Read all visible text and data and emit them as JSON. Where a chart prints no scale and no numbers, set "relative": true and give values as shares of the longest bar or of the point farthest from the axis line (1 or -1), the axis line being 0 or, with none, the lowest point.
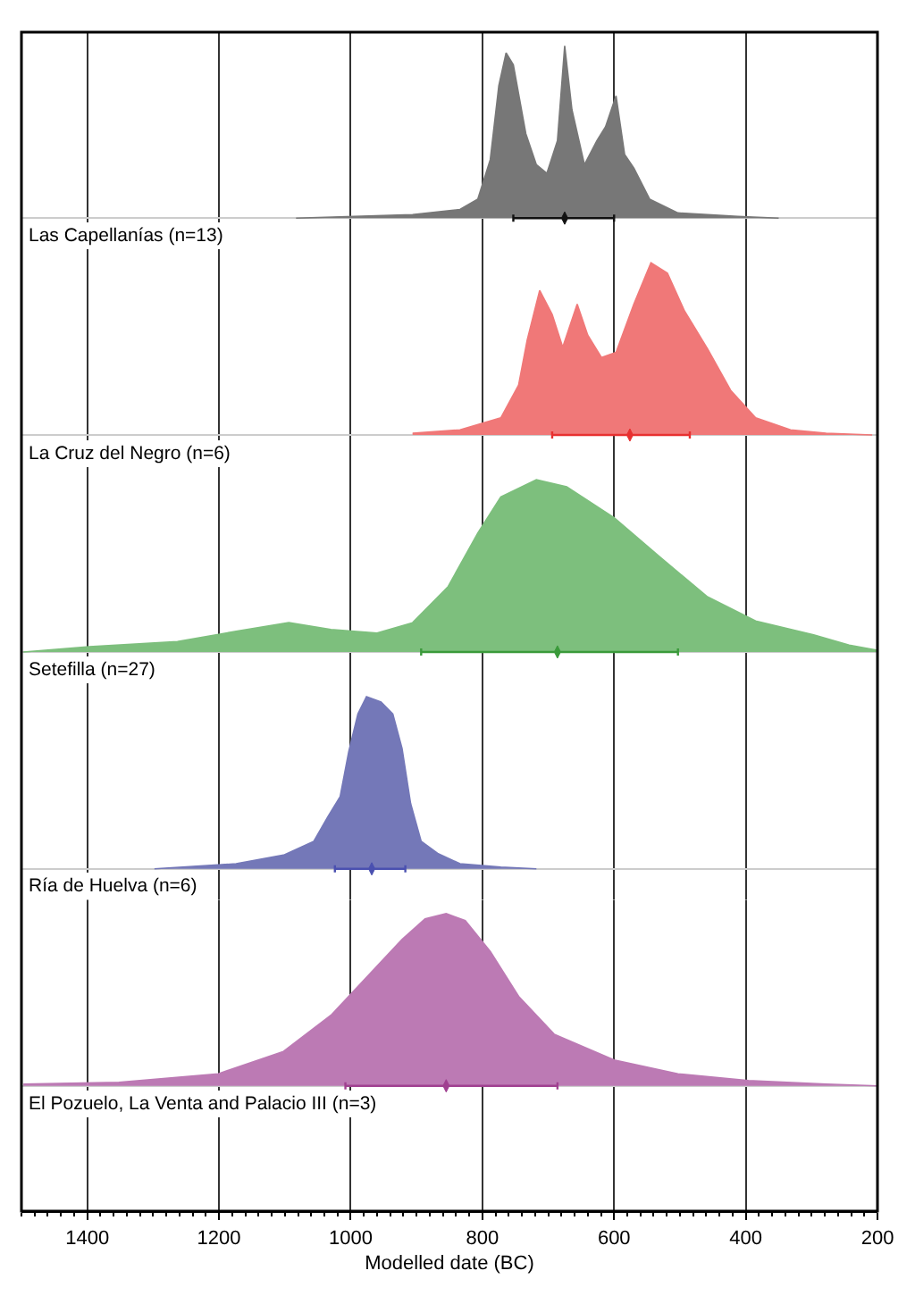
{
  "chart_data": [
    {
      "type": "area",
      "relative": true,
      "xlim": [
        1500,
        200
      ],
      "xticks": [
        1400,
        1200,
        1000,
        800,
        600,
        400,
        200
      ],
      "grid": "x",
      "tick_labels": false,
      "series": [
        {
          "name": "Las Capellanías (n=13)",
          "color": "#777777",
          "x": [
            1083,
            906,
            834,
            807,
            788,
            775,
            764,
            753,
            734,
            718,
            702,
            686,
            675,
            664,
            645,
            626,
            613,
            597,
            584,
            570,
            546,
            503,
            412,
            350
          ],
          "values": [
            0,
            0.02,
            0.05,
            0.11,
            0.34,
            0.77,
            0.96,
            0.89,
            0.49,
            0.31,
            0.26,
            0.45,
            1,
            0.63,
            0.31,
            0.45,
            0.53,
            0.71,
            0.37,
            0.29,
            0.11,
            0.03,
            0.01,
            0
          ]
        },
        {
          "type": "scatter",
          "color": "#111111",
          "x": [
            675
          ],
          "values": [
            0
          ],
          "xerrors": [
            [
              600,
              753
            ]
          ]
        }
      ]
    },
    {
      "type": "area",
      "relative": true,
      "xlim": [
        1500,
        200
      ],
      "xticks": [
        1400,
        1200,
        1000,
        800,
        600,
        400,
        200
      ],
      "grid": "x",
      "tick_labels": false,
      "series": [
        {
          "name": "La Cruz del Negro (n=6)",
          "color": "#f07878",
          "x": [
            906,
            834,
            772,
            745,
            732,
            713,
            694,
            678,
            656,
            640,
            619,
            597,
            570,
            544,
            519,
            493,
            458,
            423,
            385,
            332,
            278,
            208
          ],
          "values": [
            0.01,
            0.03,
            0.1,
            0.29,
            0.55,
            0.84,
            0.7,
            0.51,
            0.76,
            0.58,
            0.45,
            0.48,
            0.76,
            1,
            0.94,
            0.72,
            0.5,
            0.26,
            0.1,
            0.03,
            0.01,
            0
          ]
        },
        {
          "type": "scatter",
          "color": "#e83030",
          "x": [
            576
          ],
          "values": [
            0
          ],
          "xerrors": [
            [
              485,
              694
            ]
          ]
        }
      ]
    },
    {
      "type": "area",
      "relative": true,
      "xlim": [
        1500,
        200
      ],
      "xticks": [
        1400,
        1200,
        1000,
        800,
        600,
        400,
        200
      ],
      "grid": "x",
      "tick_labels": false,
      "series": [
        {
          "name": "Setefilla (n=27)",
          "color": "#7dbf7d",
          "x": [
            1497,
            1397,
            1263,
            1174,
            1094,
            1030,
            960,
            906,
            852,
            807,
            772,
            718,
            672,
            600,
            530,
            458,
            385,
            297,
            243,
            200
          ],
          "values": [
            0,
            0.03,
            0.06,
            0.12,
            0.17,
            0.13,
            0.11,
            0.17,
            0.38,
            0.69,
            0.9,
            1,
            0.96,
            0.78,
            0.55,
            0.32,
            0.18,
            0.1,
            0.04,
            0.01
          ]
        },
        {
          "type": "scatter",
          "color": "#3a9a3a",
          "x": [
            686
          ],
          "values": [
            0
          ],
          "xerrors": [
            [
              503,
              893
            ]
          ]
        }
      ]
    },
    {
      "type": "area",
      "relative": true,
      "xlim": [
        1500,
        200
      ],
      "xticks": [
        1400,
        1200,
        1000,
        800,
        600,
        400,
        200
      ],
      "grid": "x",
      "tick_labels": false,
      "series": [
        {
          "name": "Ría de Huelva (n=6)",
          "color": "#7478b8",
          "x": [
            1298,
            1174,
            1102,
            1056,
            1035,
            1016,
            1003,
            989,
            976,
            954,
            936,
            922,
            909,
            893,
            868,
            834,
            772,
            718
          ],
          "values": [
            0,
            0.03,
            0.08,
            0.16,
            0.3,
            0.42,
            0.68,
            0.9,
            1,
            0.97,
            0.9,
            0.7,
            0.38,
            0.16,
            0.09,
            0.03,
            0.01,
            0
          ]
        },
        {
          "type": "scatter",
          "color": "#4a50b0",
          "x": [
            968
          ],
          "values": [
            0
          ],
          "xerrors": [
            [
              917,
              1024
            ]
          ]
        }
      ]
    },
    {
      "type": "area",
      "relative": true,
      "xlim": [
        1500,
        200
      ],
      "xticks": [
        1400,
        1200,
        1000,
        800,
        600,
        400,
        200
      ],
      "grid": "x",
      "tick_labels": "x",
      "xlabel": "Modelled date (BC)",
      "series": [
        {
          "name": "El Pozuelo, La Venta and Palacio III (n=3)",
          "color": "#bc7ab4",
          "x": [
            1497,
            1352,
            1201,
            1102,
            1030,
            976,
            922,
            887,
            855,
            826,
            788,
            745,
            691,
            600,
            503,
            396,
            278,
            200
          ],
          "values": [
            0.01,
            0.02,
            0.07,
            0.2,
            0.41,
            0.63,
            0.85,
            0.97,
            1,
            0.96,
            0.78,
            0.52,
            0.3,
            0.15,
            0.07,
            0.03,
            0.01,
            0
          ]
        },
        {
          "type": "scatter",
          "color": "#a04090",
          "x": [
            855
          ],
          "values": [
            0
          ],
          "xerrors": [
            [
              686,
              1008
            ]
          ]
        }
      ]
    }
  ]
}
